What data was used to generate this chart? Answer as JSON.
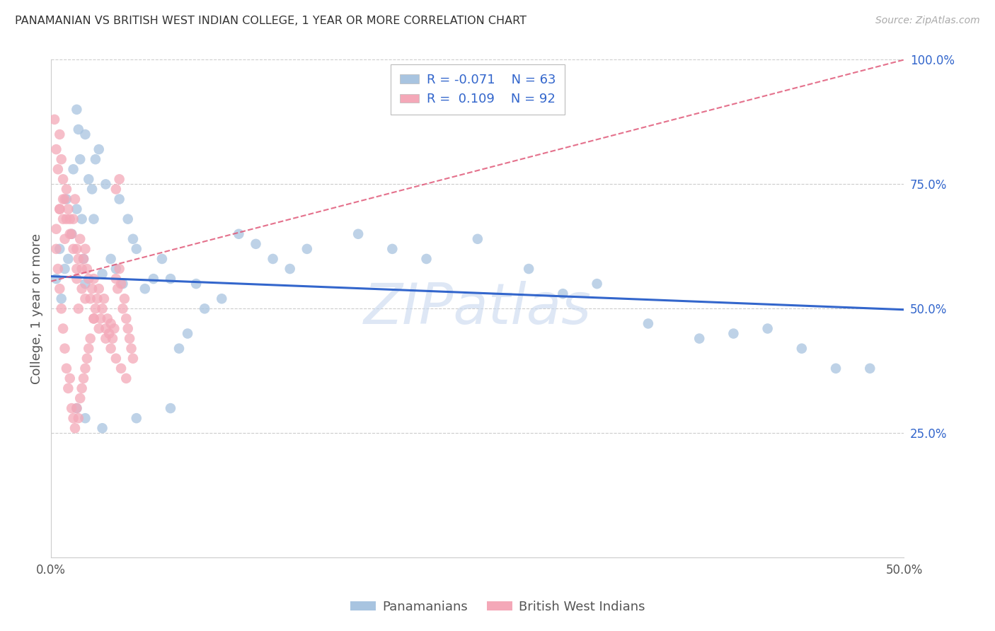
{
  "title": "PANAMANIAN VS BRITISH WEST INDIAN COLLEGE, 1 YEAR OR MORE CORRELATION CHART",
  "source": "Source: ZipAtlas.com",
  "ylabel": "College, 1 year or more",
  "legend_blue_r_val": "-0.071",
  "legend_blue_n_val": "63",
  "legend_pink_r_val": "0.109",
  "legend_pink_n_val": "92",
  "x_min": 0.0,
  "x_max": 0.5,
  "y_min": 0.0,
  "y_max": 1.0,
  "blue_line_x0": 0.0,
  "blue_line_y0": 0.565,
  "blue_line_x1": 0.5,
  "blue_line_y1": 0.498,
  "pink_line_x0": 0.0,
  "pink_line_y0": 0.555,
  "pink_line_x1": 0.5,
  "pink_line_y1": 1.0,
  "blue_color": "#a8c4e0",
  "pink_color": "#f4a8b8",
  "blue_line_color": "#3366cc",
  "pink_line_color": "#e05878",
  "watermark": "ZIPatlas",
  "watermark_color": "#c8d8ef",
  "text_color": "#3366cc",
  "axis_color": "#555555",
  "grid_color": "#cccccc",
  "title_color": "#333333",
  "source_color": "#aaaaaa",
  "blue_x": [
    0.003,
    0.005,
    0.006,
    0.008,
    0.009,
    0.01,
    0.012,
    0.013,
    0.015,
    0.015,
    0.016,
    0.017,
    0.018,
    0.019,
    0.02,
    0.02,
    0.022,
    0.024,
    0.025,
    0.026,
    0.028,
    0.03,
    0.032,
    0.035,
    0.038,
    0.04,
    0.042,
    0.045,
    0.048,
    0.05,
    0.055,
    0.06,
    0.065,
    0.07,
    0.075,
    0.08,
    0.085,
    0.09,
    0.1,
    0.11,
    0.12,
    0.13,
    0.14,
    0.15,
    0.18,
    0.2,
    0.22,
    0.25,
    0.28,
    0.3,
    0.32,
    0.35,
    0.38,
    0.4,
    0.42,
    0.44,
    0.46,
    0.48,
    0.015,
    0.02,
    0.03,
    0.05,
    0.07
  ],
  "blue_y": [
    0.56,
    0.62,
    0.52,
    0.58,
    0.72,
    0.6,
    0.65,
    0.78,
    0.7,
    0.9,
    0.86,
    0.8,
    0.68,
    0.6,
    0.55,
    0.85,
    0.76,
    0.74,
    0.68,
    0.8,
    0.82,
    0.57,
    0.75,
    0.6,
    0.58,
    0.72,
    0.55,
    0.68,
    0.64,
    0.62,
    0.54,
    0.56,
    0.6,
    0.56,
    0.42,
    0.45,
    0.55,
    0.5,
    0.52,
    0.65,
    0.63,
    0.6,
    0.58,
    0.62,
    0.65,
    0.62,
    0.6,
    0.64,
    0.58,
    0.53,
    0.55,
    0.47,
    0.44,
    0.45,
    0.46,
    0.42,
    0.38,
    0.38,
    0.3,
    0.28,
    0.26,
    0.28,
    0.3
  ],
  "pink_x": [
    0.002,
    0.003,
    0.003,
    0.004,
    0.004,
    0.005,
    0.005,
    0.005,
    0.006,
    0.006,
    0.007,
    0.007,
    0.007,
    0.008,
    0.008,
    0.008,
    0.009,
    0.009,
    0.01,
    0.01,
    0.011,
    0.011,
    0.012,
    0.012,
    0.013,
    0.013,
    0.014,
    0.014,
    0.015,
    0.015,
    0.015,
    0.016,
    0.016,
    0.016,
    0.017,
    0.017,
    0.018,
    0.018,
    0.019,
    0.019,
    0.02,
    0.02,
    0.021,
    0.021,
    0.022,
    0.022,
    0.023,
    0.023,
    0.024,
    0.025,
    0.025,
    0.026,
    0.027,
    0.028,
    0.029,
    0.03,
    0.031,
    0.032,
    0.033,
    0.034,
    0.035,
    0.036,
    0.037,
    0.038,
    0.038,
    0.039,
    0.04,
    0.04,
    0.041,
    0.042,
    0.043,
    0.044,
    0.045,
    0.046,
    0.047,
    0.048,
    0.003,
    0.005,
    0.007,
    0.009,
    0.011,
    0.013,
    0.015,
    0.018,
    0.02,
    0.025,
    0.028,
    0.032,
    0.035,
    0.038,
    0.041,
    0.044
  ],
  "pink_y": [
    0.88,
    0.82,
    0.62,
    0.78,
    0.58,
    0.85,
    0.54,
    0.7,
    0.8,
    0.5,
    0.76,
    0.46,
    0.68,
    0.72,
    0.42,
    0.64,
    0.74,
    0.38,
    0.7,
    0.34,
    0.68,
    0.36,
    0.65,
    0.3,
    0.68,
    0.28,
    0.72,
    0.26,
    0.62,
    0.3,
    0.56,
    0.6,
    0.28,
    0.5,
    0.64,
    0.32,
    0.58,
    0.34,
    0.6,
    0.36,
    0.62,
    0.38,
    0.58,
    0.4,
    0.56,
    0.42,
    0.52,
    0.44,
    0.54,
    0.56,
    0.48,
    0.5,
    0.52,
    0.54,
    0.48,
    0.5,
    0.52,
    0.46,
    0.48,
    0.45,
    0.47,
    0.44,
    0.46,
    0.56,
    0.74,
    0.54,
    0.58,
    0.76,
    0.55,
    0.5,
    0.52,
    0.48,
    0.46,
    0.44,
    0.42,
    0.4,
    0.66,
    0.7,
    0.72,
    0.68,
    0.65,
    0.62,
    0.58,
    0.54,
    0.52,
    0.48,
    0.46,
    0.44,
    0.42,
    0.4,
    0.38,
    0.36
  ]
}
